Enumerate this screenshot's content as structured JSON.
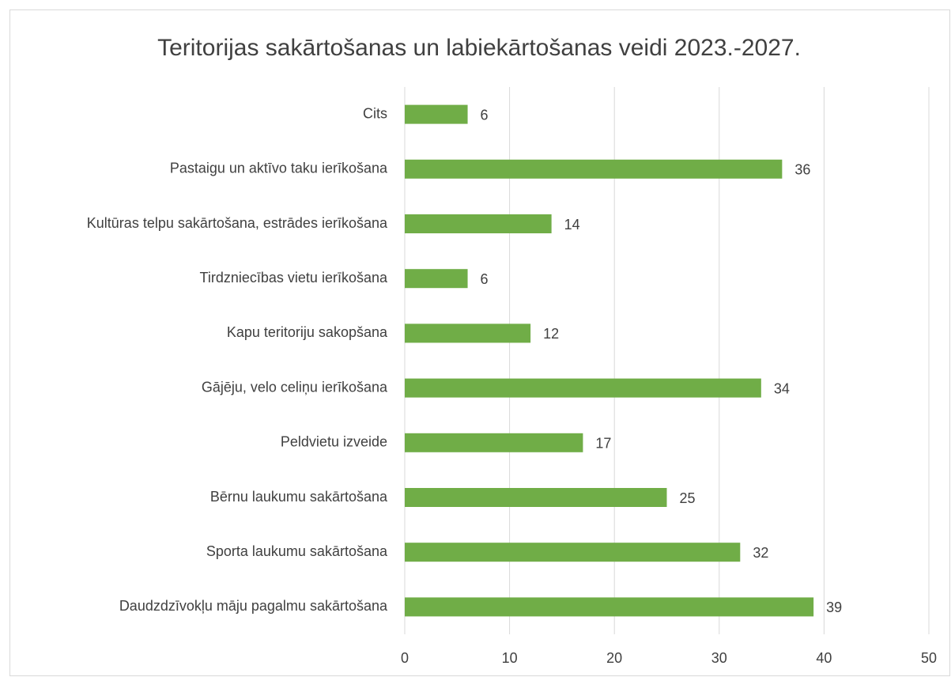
{
  "chart_data": {
    "type": "bar",
    "orientation": "horizontal",
    "title": "Teritorijas sakārtošanas un labiekārtošanas veidi 2023.-2027.",
    "categories": [
      "Cits",
      "Pastaigu un aktīvo taku ierīkošana",
      "Kultūras telpu sakārtošana, estrādes ierīkošana",
      "Tirdzniecības vietu ierīkošana",
      "Kapu teritoriju sakopšana",
      "Gājēju, velo celiņu ierīkošana",
      "Peldvietu izveide",
      "Bērnu laukumu sakārtošana",
      "Sporta laukumu sakārtošana",
      "Daudzdzīvokļu māju pagalmu sakārtošana"
    ],
    "values": [
      6,
      36,
      14,
      6,
      12,
      34,
      17,
      25,
      32,
      39
    ],
    "color": "#70ad47",
    "xlim": [
      0,
      50
    ],
    "xticks": [
      0,
      10,
      20,
      30,
      40,
      50
    ],
    "grid": true
  }
}
